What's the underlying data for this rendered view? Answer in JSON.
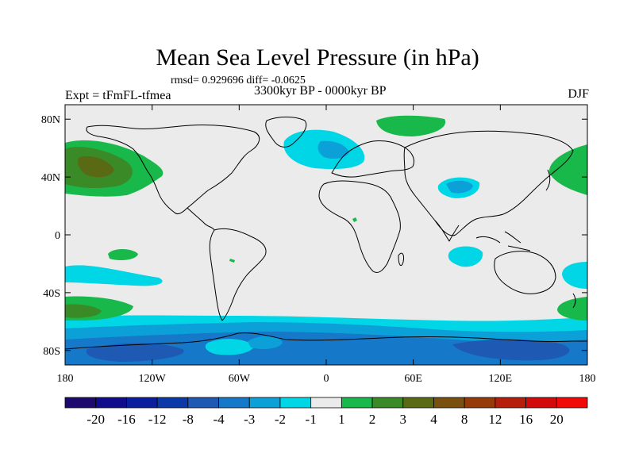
{
  "title": "Mean Sea Level Pressure (in hPa)",
  "stats": "rmsd= 0.929696 diff= -0.0625",
  "period": "3300kyr BP - 0000kyr BP",
  "experiment": "Expt = tFmFL-tfmea",
  "season": "DJF",
  "axes": {
    "x_ticks": [
      "180",
      "120W",
      "60W",
      "0",
      "60E",
      "120E",
      "180"
    ],
    "y_ticks": [
      "80N",
      "40N",
      "0",
      "40S",
      "80S"
    ],
    "x_values": [
      -180,
      -120,
      -60,
      0,
      60,
      120,
      180
    ],
    "y_values": [
      80,
      40,
      0,
      -40,
      -80
    ],
    "lon_range": [
      -180,
      180
    ],
    "lat_range": [
      -90,
      90
    ]
  },
  "colorbar": {
    "labels": [
      "-20",
      "-16",
      "-12",
      "-8",
      "-4",
      "-3",
      "-2",
      "-1",
      "1",
      "2",
      "3",
      "4",
      "8",
      "12",
      "16",
      "20"
    ],
    "colors": [
      "#1e0a6e",
      "#100c8c",
      "#0a1e9e",
      "#0b3aa8",
      "#1e5ab4",
      "#1678c8",
      "#0ca0d8",
      "#00d6e6",
      "#ebebeb",
      "#18b84a",
      "#3a8a28",
      "#5a6a14",
      "#7a5010",
      "#963a0a",
      "#b41e0a",
      "#d20a0a",
      "#f00a0a"
    ]
  },
  "map_colors": {
    "background": "#ebebeb",
    "neg1": "#00d6e6",
    "neg2": "#0ca0d8",
    "neg3": "#1678c8",
    "neg4": "#1e5ab4",
    "pos1": "#18b84a",
    "pos2": "#3a8a28",
    "pos3": "#5a6a14"
  }
}
